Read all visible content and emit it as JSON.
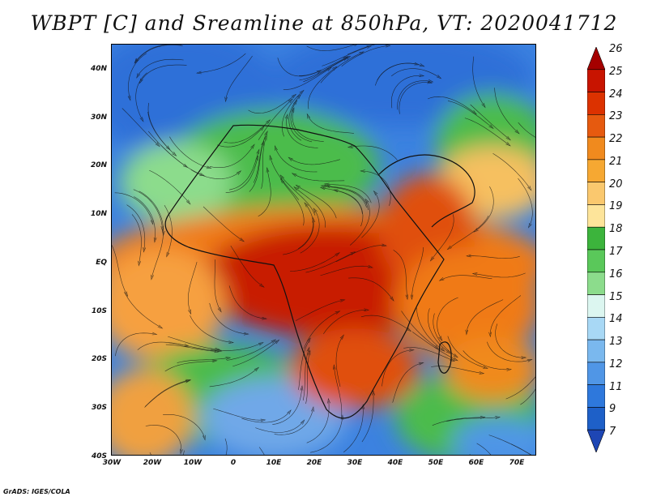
{
  "title": "WBPT [C] and Sreamline at 850hPa, VT: 2020041712",
  "credit": "GrADS: IGES/COLA",
  "lat_labels": [
    "40N",
    "30N",
    "20N",
    "10N",
    "EQ",
    "10S",
    "20S",
    "30S",
    "40S"
  ],
  "lon_labels": [
    "30W",
    "20W",
    "10W",
    "0",
    "10E",
    "20E",
    "30E",
    "40E",
    "50E",
    "60E",
    "70E"
  ],
  "colorbar": {
    "labels": [
      "26",
      "25",
      "24",
      "23",
      "22",
      "21",
      "20",
      "19",
      "18",
      "17",
      "16",
      "15",
      "14",
      "13",
      "12",
      "11",
      "9",
      "7"
    ],
    "colors": [
      "#a50000",
      "#c81400",
      "#dc3200",
      "#e65a0f",
      "#f08a1e",
      "#f6a832",
      "#fac86e",
      "#fde49a",
      "#3cb43c",
      "#5ac85a",
      "#8cdc8c",
      "#dcf6f0",
      "#a8d8f5",
      "#7ab8ee",
      "#5096e6",
      "#2e78dc",
      "#1e60c8",
      "#1e46b4"
    ]
  },
  "map": {
    "description_colors": {
      "hot": "#c81e00",
      "warm": "#f07a18",
      "mild": "#f6c060",
      "cool_green": "#4cbc4c",
      "cold_blue": "#3c82e0"
    }
  }
}
